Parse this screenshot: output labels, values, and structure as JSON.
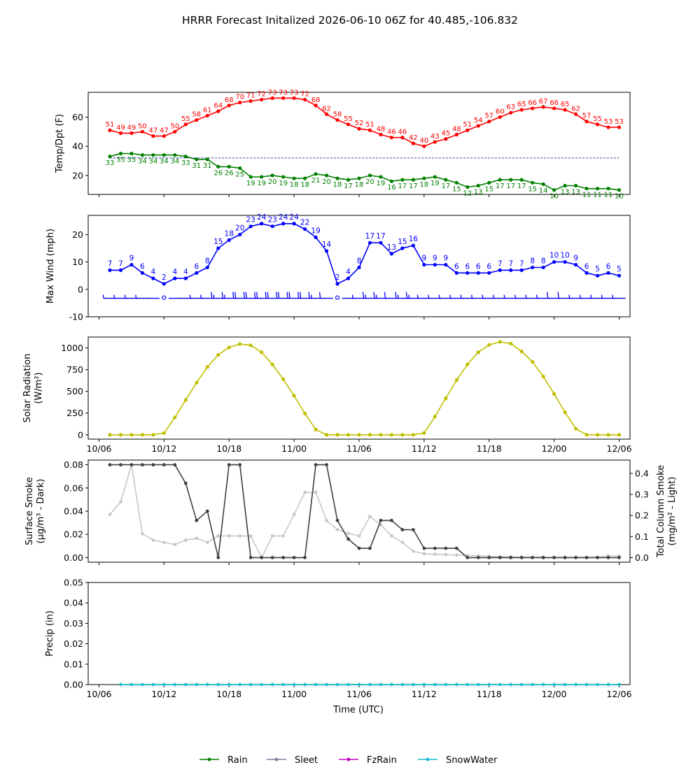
{
  "title": "HRRR Forecast Initalized 2026-06-10 06Z for 40.485,-106.832",
  "x_axis": {
    "xlabel": "Time (UTC)",
    "tick_labels": [
      "10/06",
      "10/12",
      "10/18",
      "11/00",
      "11/06",
      "11/12",
      "11/18",
      "12/00",
      "12/06"
    ],
    "tick_hours": [
      0,
      6,
      12,
      18,
      24,
      30,
      36,
      42,
      48
    ]
  },
  "legend": {
    "placement": "bottom-center",
    "items": [
      {
        "label": "Rain",
        "color": "#008000"
      },
      {
        "label": "Sleet",
        "color": "#8878a0"
      },
      {
        "label": "FzRain",
        "color": "#c000c0"
      },
      {
        "label": "SnowWater",
        "color": "#17becf"
      }
    ]
  },
  "chart_data": [
    {
      "type": "line",
      "panel": "temperature",
      "ylabel": "Temp/Dpt (F)",
      "ylim": [
        7,
        77
      ],
      "yticks": [
        20,
        40,
        60
      ],
      "freezing_line": 32,
      "x": [
        1,
        2,
        3,
        4,
        5,
        6,
        7,
        8,
        9,
        10,
        11,
        12,
        13,
        14,
        15,
        16,
        17,
        18,
        19,
        20,
        21,
        22,
        23,
        24,
        25,
        26,
        27,
        28,
        29,
        30,
        31,
        32,
        33,
        34,
        35,
        36,
        37,
        38,
        39,
        40,
        41,
        42,
        43,
        44,
        45,
        46,
        47,
        48
      ],
      "series": [
        {
          "name": "Temp",
          "color": "#ff0000",
          "values": [
            51,
            49,
            49,
            50,
            47,
            47,
            50,
            55,
            58,
            61,
            64,
            68,
            70,
            71,
            72,
            73,
            73,
            73,
            72,
            68,
            62,
            58,
            55,
            52,
            51,
            48,
            46,
            46,
            42,
            40,
            43,
            45,
            48,
            51,
            54,
            57,
            60,
            63,
            65,
            66,
            67,
            66,
            65,
            62,
            57,
            55,
            53,
            53
          ]
        },
        {
          "name": "Dewpoint",
          "color": "#008000",
          "values": [
            33,
            35,
            35,
            34,
            34,
            34,
            34,
            33,
            31,
            31,
            26,
            26,
            25,
            19,
            19,
            20,
            19,
            18,
            18,
            21,
            20,
            18,
            17,
            18,
            20,
            19,
            16,
            17,
            17,
            18,
            19,
            17,
            15,
            12,
            13,
            15,
            17,
            17,
            17,
            15,
            14,
            10,
            13,
            13,
            11,
            11,
            11,
            10
          ]
        }
      ]
    },
    {
      "type": "line",
      "panel": "wind",
      "ylabel": "Max Wind (mph)",
      "ylim": [
        -10,
        27
      ],
      "yticks": [
        -10,
        0,
        10,
        20
      ],
      "color": "#0000ff",
      "x": [
        1,
        2,
        3,
        4,
        5,
        6,
        7,
        8,
        9,
        10,
        11,
        12,
        13,
        14,
        15,
        16,
        17,
        18,
        19,
        20,
        21,
        22,
        23,
        24,
        25,
        26,
        27,
        28,
        29,
        30,
        31,
        32,
        33,
        34,
        35,
        36,
        37,
        38,
        39,
        40,
        41,
        42,
        43,
        44,
        45,
        46,
        47,
        48
      ],
      "values": [
        7,
        7,
        9,
        6,
        4,
        2,
        4,
        4,
        6,
        8,
        15,
        18,
        20,
        23,
        24,
        23,
        24,
        24,
        22,
        19,
        14,
        2,
        4,
        8,
        17,
        17,
        13,
        15,
        16,
        9,
        9,
        9,
        6,
        6,
        6,
        6,
        7,
        7,
        7,
        8,
        8,
        10,
        10,
        9,
        6,
        5,
        6,
        5
      ],
      "barbs_level": -3
    },
    {
      "type": "line",
      "panel": "solar",
      "ylabel": "Solar Radiation (W/m²)",
      "ylim": [
        -50,
        1125
      ],
      "yticks": [
        0,
        250,
        500,
        750,
        1000
      ],
      "color": "#bfbf00",
      "x": [
        1,
        2,
        3,
        4,
        5,
        6,
        7,
        8,
        9,
        10,
        11,
        12,
        13,
        14,
        15,
        16,
        17,
        18,
        19,
        20,
        21,
        22,
        23,
        24,
        25,
        26,
        27,
        28,
        29,
        30,
        31,
        32,
        33,
        34,
        35,
        36,
        37,
        38,
        39,
        40,
        41,
        42,
        43,
        44,
        45,
        46,
        47,
        48
      ],
      "values": [
        0,
        0,
        0,
        0,
        0,
        20,
        200,
        400,
        600,
        780,
        920,
        1005,
        1045,
        1030,
        950,
        810,
        640,
        450,
        245,
        60,
        0,
        0,
        0,
        0,
        0,
        0,
        0,
        0,
        0,
        20,
        210,
        420,
        630,
        810,
        950,
        1035,
        1070,
        1050,
        960,
        840,
        670,
        470,
        260,
        70,
        0,
        0,
        0,
        0
      ]
    },
    {
      "type": "line",
      "panel": "smoke",
      "ylabel": "Surface Smoke (µg/m³ - Dark)",
      "ylabel_right": "Total Column Smoke (mg/m² - Light)",
      "ylim": [
        -0.004,
        0.084
      ],
      "ylim_right": [
        -0.022,
        0.463
      ],
      "yticks": [
        "0.00",
        "0.02",
        "0.04",
        "0.06",
        "0.08"
      ],
      "yticks_right": [
        "0.0",
        "0.1",
        "0.2",
        "0.3",
        "0.4"
      ],
      "x": [
        1,
        2,
        3,
        4,
        5,
        6,
        7,
        8,
        9,
        10,
        11,
        12,
        13,
        14,
        15,
        16,
        17,
        18,
        19,
        20,
        21,
        22,
        23,
        24,
        25,
        26,
        27,
        28,
        29,
        30,
        31,
        32,
        33,
        34,
        35,
        36,
        37,
        38,
        39,
        40,
        41,
        42,
        43,
        44,
        45,
        46,
        47,
        48
      ],
      "series": [
        {
          "name": "Surface Smoke",
          "color": "#404040",
          "axis": "left",
          "values": [
            0.08,
            0.08,
            0.08,
            0.08,
            0.08,
            0.08,
            0.08,
            0.064,
            0.032,
            0.04,
            0.0,
            0.08,
            0.08,
            0.0,
            0.0,
            0.0,
            0.0,
            0.0,
            0.0,
            0.08,
            0.08,
            0.032,
            0.016,
            0.008,
            0.008,
            0.032,
            0.032,
            0.024,
            0.024,
            0.008,
            0.008,
            0.008,
            0.008,
            0.0,
            0.0,
            0.0,
            0.0,
            0.0,
            0.0,
            0.0,
            0.0,
            0.0,
            0.0,
            0.0,
            0.0,
            0.0,
            0.0,
            0.0
          ]
        },
        {
          "name": "Total Column Smoke",
          "color": "#c8c8c8",
          "axis": "right",
          "values": [
            0.205,
            0.265,
            0.44,
            0.113,
            0.083,
            0.072,
            0.062,
            0.083,
            0.092,
            0.072,
            0.103,
            0.103,
            0.103,
            0.103,
            0.0,
            0.103,
            0.103,
            0.205,
            0.31,
            0.31,
            0.175,
            0.133,
            0.115,
            0.103,
            0.195,
            0.155,
            0.103,
            0.072,
            0.03,
            0.018,
            0.016,
            0.014,
            0.012,
            0.01,
            0.008,
            0.006,
            0.004,
            0.003,
            0.002,
            0.002,
            0.001,
            0.001,
            0.001,
            0.001,
            0.001,
            0.001,
            0.008,
            0.008
          ]
        }
      ]
    },
    {
      "type": "line",
      "panel": "precip",
      "ylabel": "Precip (in)",
      "ylim": [
        0,
        0.05
      ],
      "yticks": [
        "0.00",
        "0.01",
        "0.02",
        "0.03",
        "0.04",
        "0.05"
      ],
      "x": [
        2,
        3,
        4,
        5,
        6,
        7,
        8,
        9,
        10,
        11,
        12,
        13,
        14,
        15,
        16,
        17,
        18,
        19,
        20,
        21,
        22,
        23,
        24,
        25,
        26,
        27,
        28,
        29,
        30,
        31,
        32,
        33,
        34,
        35,
        36,
        37,
        38,
        39,
        40,
        41,
        42,
        43,
        44,
        45,
        46,
        47,
        48
      ],
      "series": [
        {
          "name": "Rain",
          "color": "#008000",
          "values": [
            0,
            0,
            0,
            0,
            0,
            0,
            0,
            0,
            0,
            0,
            0,
            0,
            0,
            0,
            0,
            0,
            0,
            0,
            0,
            0,
            0,
            0,
            0,
            0,
            0,
            0,
            0,
            0,
            0,
            0,
            0,
            0,
            0,
            0,
            0,
            0,
            0,
            0,
            0,
            0,
            0,
            0,
            0,
            0,
            0,
            0,
            0
          ]
        },
        {
          "name": "SnowWater",
          "color": "#17becf",
          "values": [
            0,
            0,
            0,
            0,
            0,
            0,
            0,
            0,
            0,
            0,
            0,
            0,
            0,
            0,
            0,
            0,
            0,
            0,
            0,
            0,
            0,
            0,
            0,
            0,
            0,
            0,
            0,
            0,
            0,
            0,
            0,
            0,
            0,
            0,
            0,
            0,
            0,
            0,
            0,
            0,
            0,
            0,
            0,
            0,
            0,
            0,
            0
          ]
        }
      ]
    }
  ]
}
